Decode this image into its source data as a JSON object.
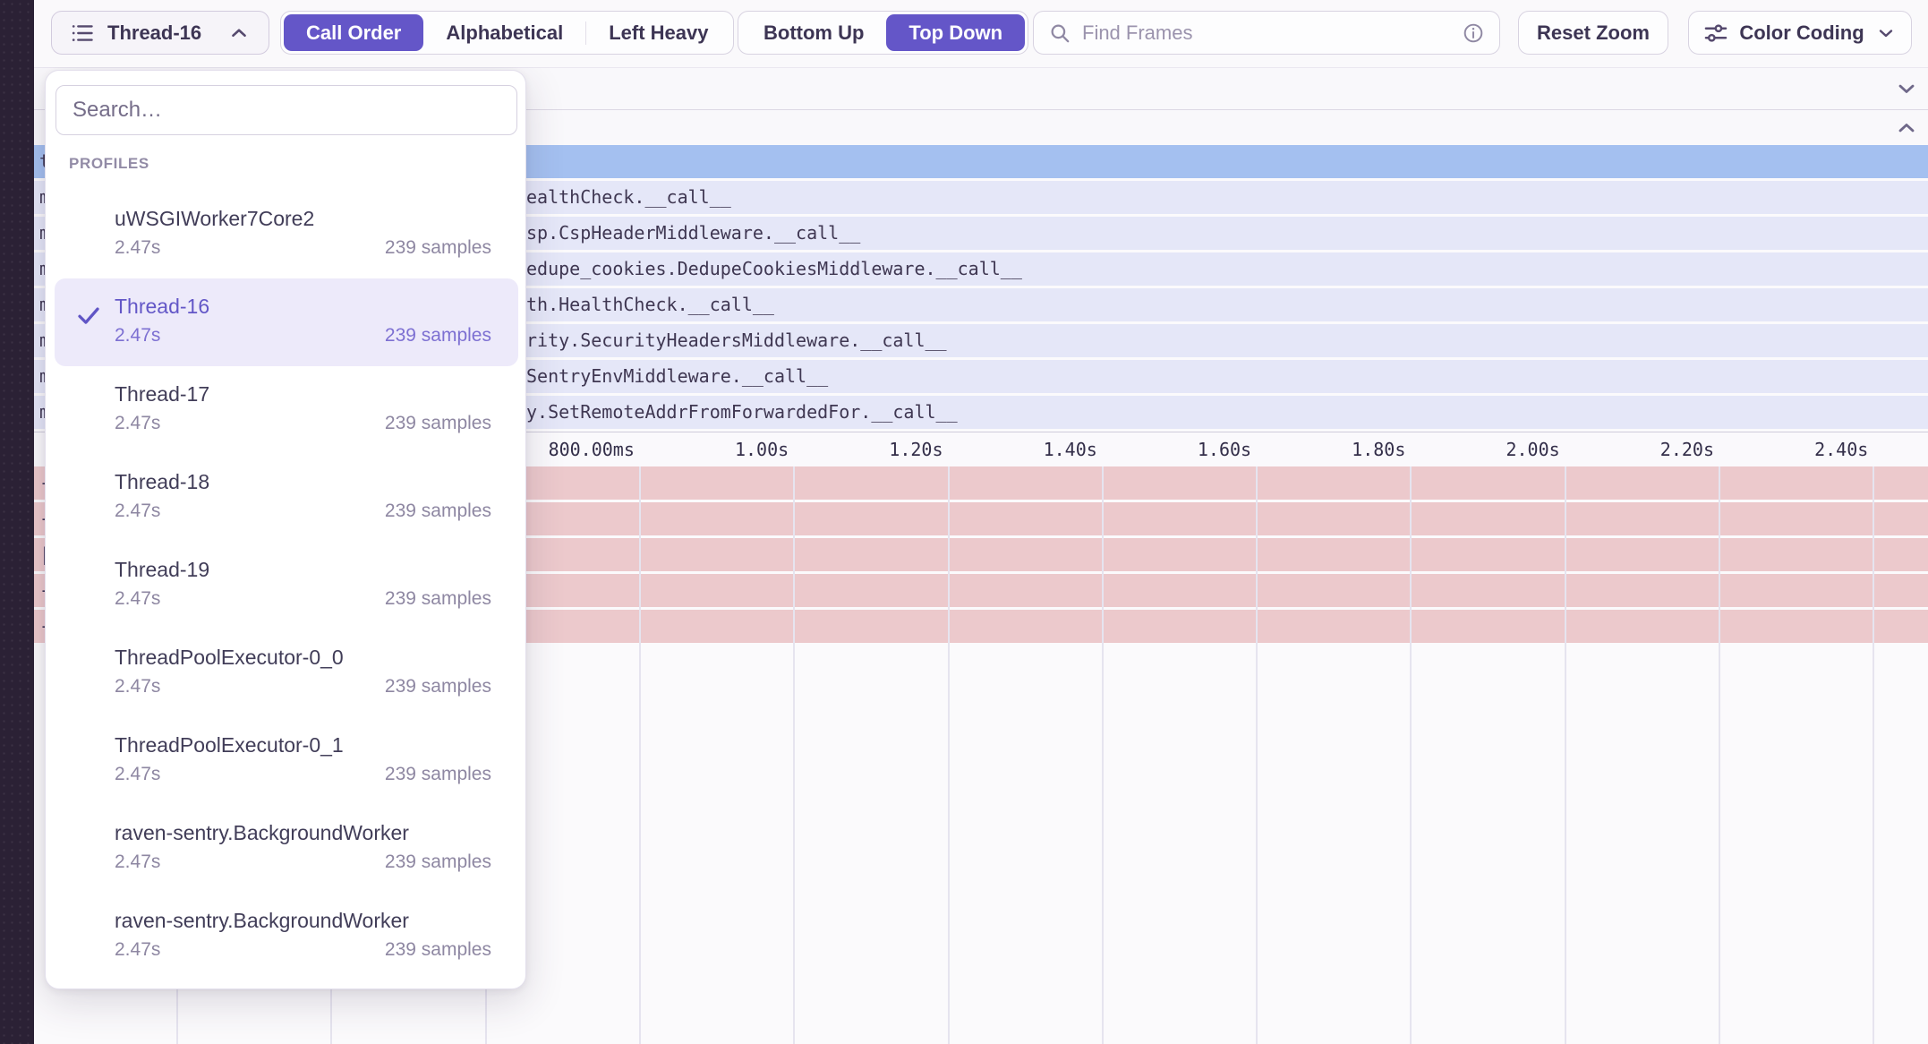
{
  "colors": {
    "accent_purple": "#6456c8",
    "selection_blue": "#a4c0f0",
    "frame_lavender": "#e5e7f8",
    "sample_pink": "#ecc9cc",
    "sidebar_dark": "#2b2135"
  },
  "toolbar": {
    "thread_selector": {
      "label": "Thread-16"
    },
    "view_modes": {
      "options": [
        "Call Order",
        "Alphabetical",
        "Left Heavy"
      ],
      "selected": "Call Order"
    },
    "direction_modes": {
      "options": [
        "Bottom Up",
        "Top Down"
      ],
      "selected": "Top Down"
    },
    "find_frames": {
      "placeholder": "Find Frames"
    },
    "reset_zoom_label": "Reset Zoom",
    "color_coding_label": "Color Coding"
  },
  "dropdown": {
    "search_placeholder": "Search…",
    "section_label": "PROFILES",
    "items": [
      {
        "name": "uWSGIWorker7Core2",
        "duration": "2.47s",
        "samples": "239 samples",
        "selected": false
      },
      {
        "name": "Thread-16",
        "duration": "2.47s",
        "samples": "239 samples",
        "selected": true
      },
      {
        "name": "Thread-17",
        "duration": "2.47s",
        "samples": "239 samples",
        "selected": false
      },
      {
        "name": "Thread-18",
        "duration": "2.47s",
        "samples": "239 samples",
        "selected": false
      },
      {
        "name": "Thread-19",
        "duration": "2.47s",
        "samples": "239 samples",
        "selected": false
      },
      {
        "name": "ThreadPoolExecutor-0_0",
        "duration": "2.47s",
        "samples": "239 samples",
        "selected": false
      },
      {
        "name": "ThreadPoolExecutor-0_1",
        "duration": "2.47s",
        "samples": "239 samples",
        "selected": false
      },
      {
        "name": "raven-sentry.BackgroundWorker",
        "duration": "2.47s",
        "samples": "239 samples",
        "selected": false
      },
      {
        "name": "raven-sentry.BackgroundWorker",
        "duration": "2.47s",
        "samples": "239 samples",
        "selected": false
      }
    ]
  },
  "flamegraph": {
    "selection_row": {
      "left_fragment": "t"
    },
    "frame_rows": [
      {
        "left_fragment": "m",
        "visible_text": "ealthCheck.__call__"
      },
      {
        "left_fragment": "m",
        "visible_text": "sp.CspHeaderMiddleware.__call__"
      },
      {
        "left_fragment": "m",
        "visible_text": "edupe_cookies.DedupeCookiesMiddleware.__call__"
      },
      {
        "left_fragment": "m",
        "visible_text": "th.HealthCheck.__call__"
      },
      {
        "left_fragment": "m",
        "visible_text": "rity.SecurityHeadersMiddleware.__call__"
      },
      {
        "left_fragment": "m",
        "visible_text": "SentryEnvMiddleware.__call__"
      },
      {
        "left_fragment": "m",
        "visible_text": "y.SetRemoteAddrFromForwardedFor.__call__"
      }
    ],
    "axis_labels": [
      "800.00ms",
      "1.00s",
      "1.20s",
      "1.40s",
      "1.60s",
      "1.80s",
      "2.00s",
      "2.20s",
      "2.40s"
    ],
    "pink_row_fragments": [
      "-",
      "-",
      "|",
      "-",
      "-"
    ]
  }
}
